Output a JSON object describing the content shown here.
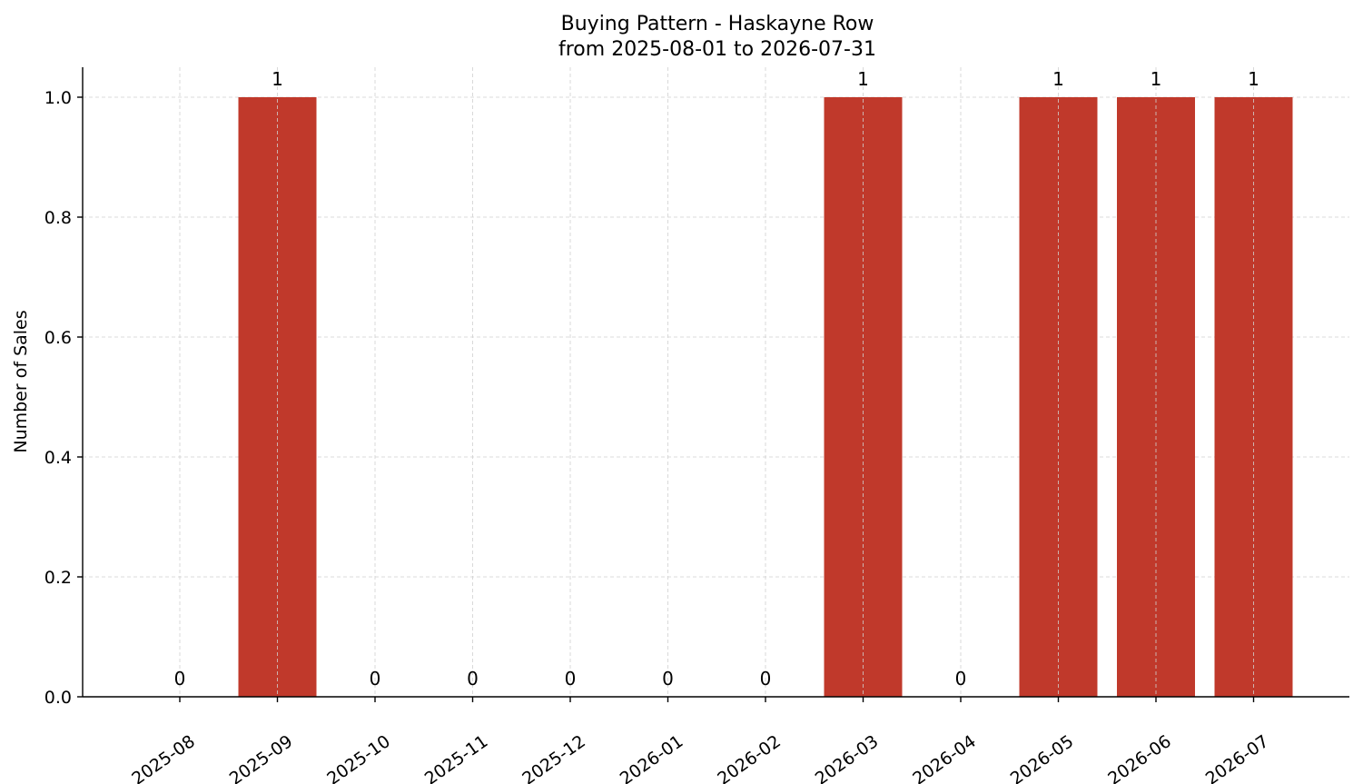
{
  "chart_data": {
    "type": "bar",
    "title": "Buying Pattern - Haskayne Row",
    "subtitle": "from 2025-08-01 to 2026-07-31",
    "xlabel": "",
    "ylabel": "Number of Sales",
    "categories": [
      "2025-08",
      "2025-09",
      "2025-10",
      "2025-11",
      "2025-12",
      "2026-01",
      "2026-02",
      "2026-03",
      "2026-04",
      "2026-05",
      "2026-06",
      "2026-07"
    ],
    "values": [
      0,
      1,
      0,
      0,
      0,
      0,
      0,
      1,
      0,
      1,
      1,
      1
    ],
    "data_labels": [
      "0",
      "1",
      "0",
      "0",
      "0",
      "0",
      "0",
      "1",
      "0",
      "1",
      "1",
      "1"
    ],
    "ylim": [
      0,
      1.05
    ],
    "yticks": [
      0.0,
      0.2,
      0.4,
      0.6,
      0.8,
      1.0
    ],
    "ytick_labels": [
      "0.0",
      "0.2",
      "0.4",
      "0.6",
      "0.8",
      "1.0"
    ],
    "grid": true,
    "bar_color": "#c0392b"
  }
}
